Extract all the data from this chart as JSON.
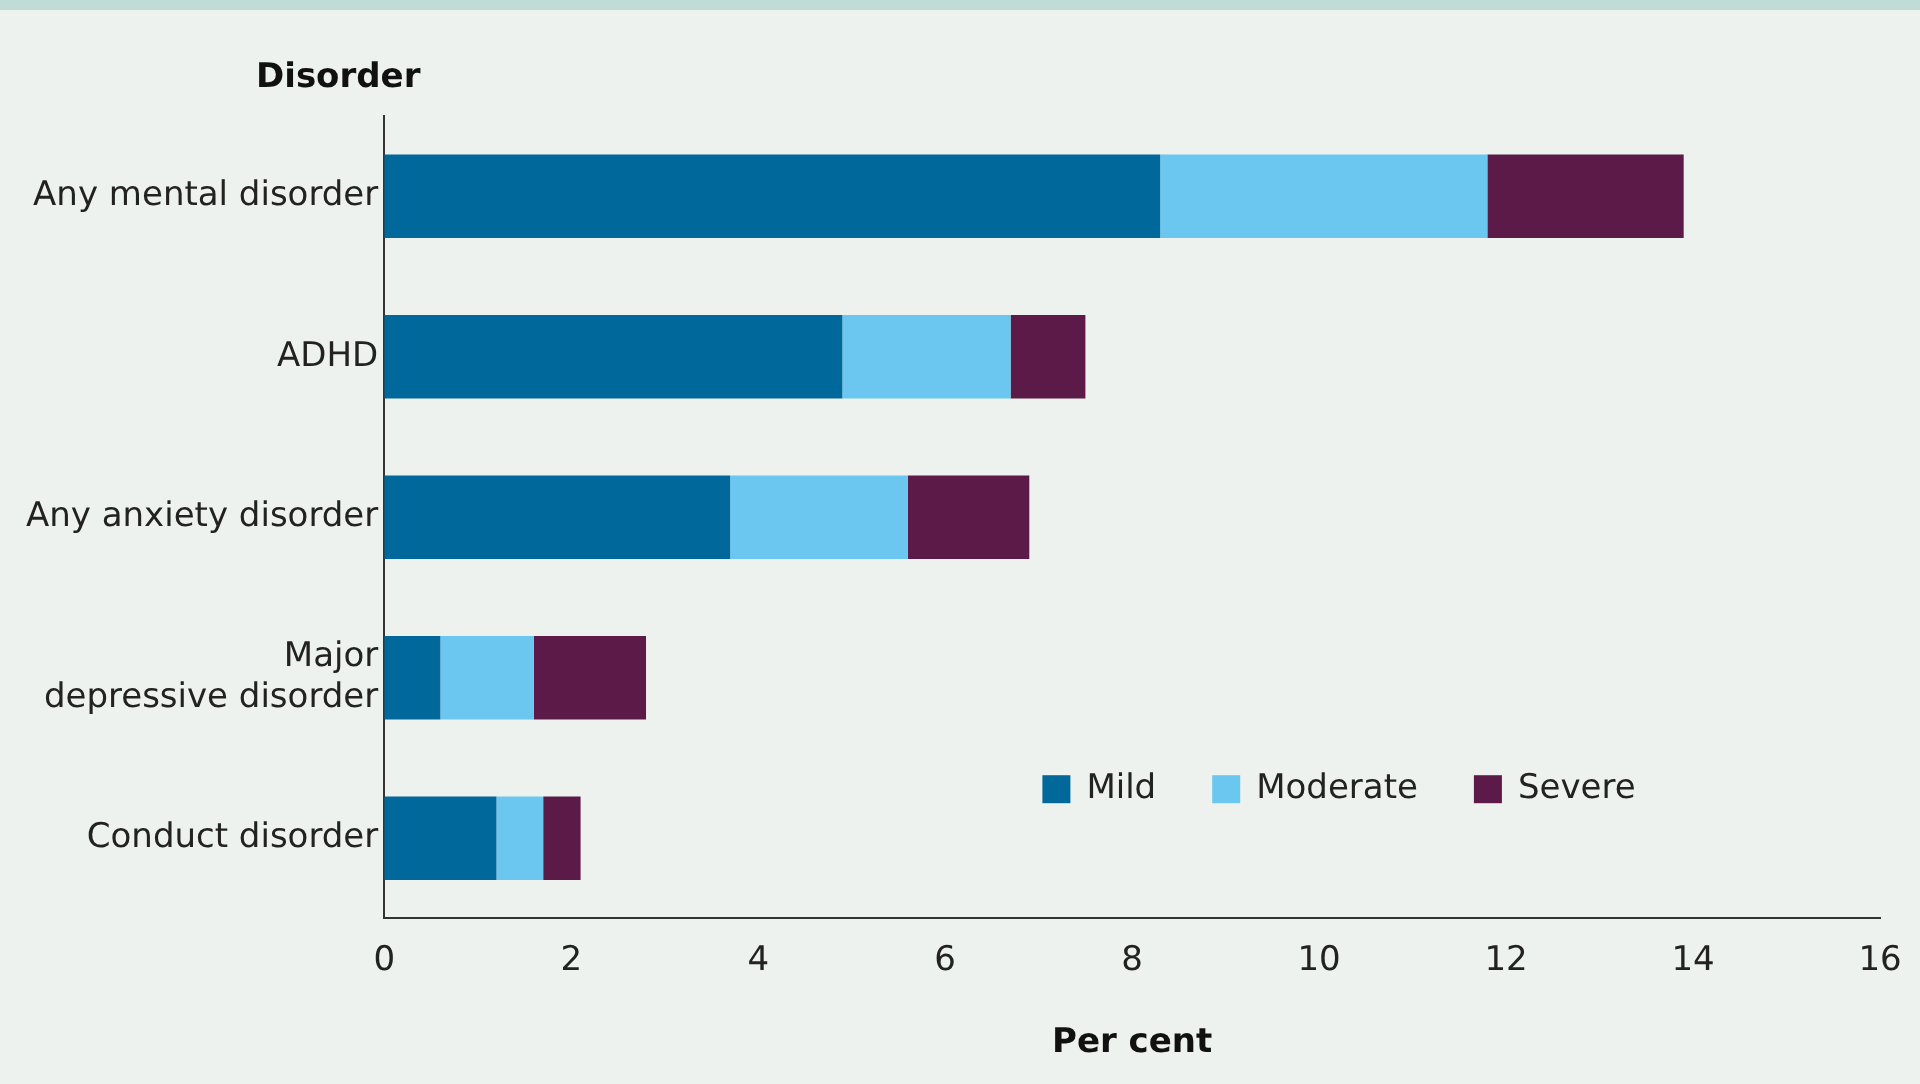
{
  "chart_data": {
    "type": "bar",
    "orientation": "horizontal",
    "stacked": true,
    "ylabel": "Disorder",
    "xlabel": "Per cent",
    "categories": [
      "Any mental disorder",
      "ADHD",
      "Any anxiety disorder",
      "Major depressive disorder",
      "Conduct disorder"
    ],
    "series": [
      {
        "name": "Mild",
        "color": "#00689a",
        "values": [
          8.3,
          4.9,
          3.7,
          0.6,
          1.2
        ]
      },
      {
        "name": "Moderate",
        "color": "#6bc7ef",
        "values": [
          3.5,
          1.8,
          1.9,
          1.0,
          0.5
        ]
      },
      {
        "name": "Severe",
        "color": "#5b1a47",
        "values": [
          2.1,
          0.8,
          1.3,
          1.2,
          0.4
        ]
      }
    ],
    "xlim": [
      0,
      16
    ],
    "xticks": [
      0,
      2,
      4,
      6,
      8,
      10,
      12,
      14,
      16
    ],
    "grid": false,
    "legend": "right"
  }
}
